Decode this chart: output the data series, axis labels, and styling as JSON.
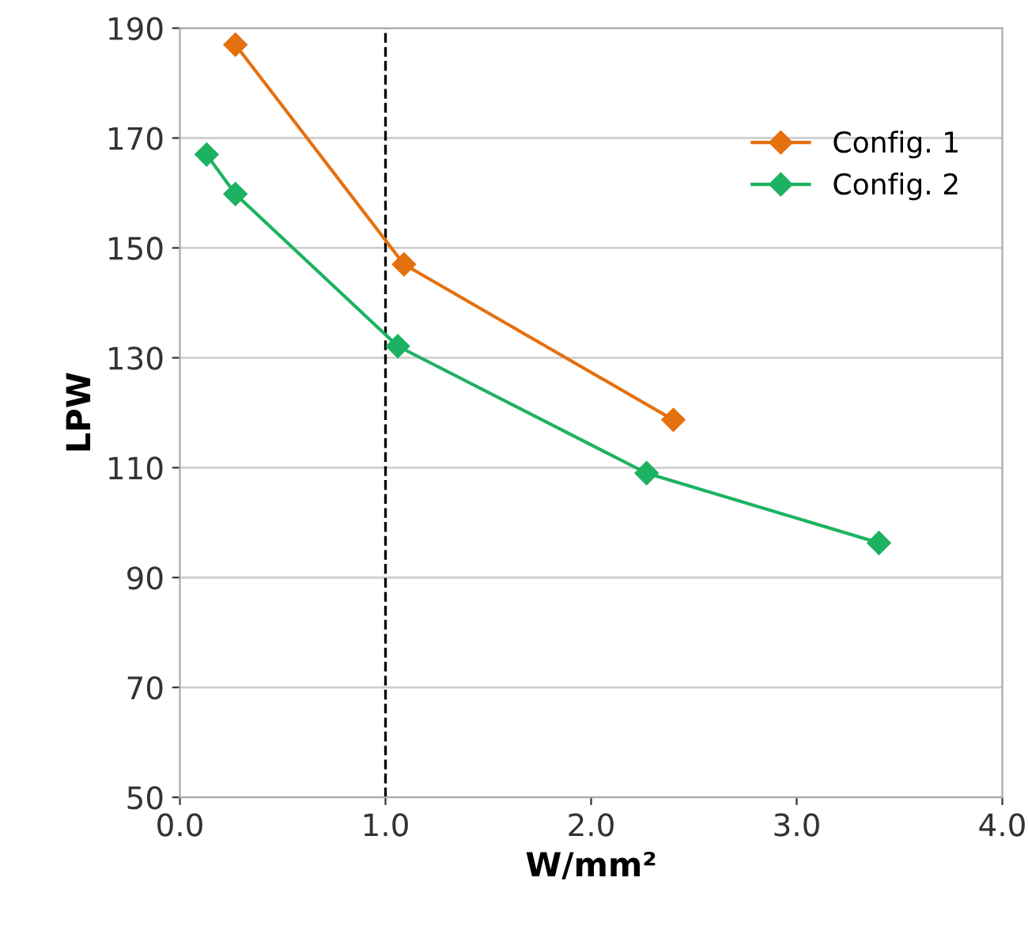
{
  "chart_data": {
    "type": "line",
    "xlabel": "W/mm²",
    "ylabel": "LPW",
    "series": [
      {
        "name": "Config. 1",
        "color": "#e5700f",
        "x": [
          0.27,
          1.09,
          2.4
        ],
        "values": [
          187,
          147,
          118.7
        ]
      },
      {
        "name": "Config. 2",
        "color": "#1db261",
        "x": [
          0.13,
          0.27,
          1.06,
          2.27,
          3.4
        ],
        "values": [
          167,
          159.8,
          132.1,
          109,
          96.3
        ]
      }
    ],
    "xlim": [
      0,
      4
    ],
    "xticks": [
      {
        "value": 0,
        "label": "0.0"
      },
      {
        "value": 1,
        "label": "1.0"
      },
      {
        "value": 2,
        "label": "2.0"
      },
      {
        "value": 3,
        "label": "3.0"
      },
      {
        "value": 4,
        "label": "4.0"
      }
    ],
    "ylim": [
      50,
      190
    ],
    "yticks": [
      50,
      70,
      90,
      110,
      130,
      150,
      170,
      190
    ],
    "ref_lines": [
      {
        "axis": "x",
        "value": 1,
        "label": null,
        "color": "#000000",
        "line_style": "dashed"
      }
    ],
    "grid": "y",
    "legend": "top right",
    "marker": "diamond",
    "line_style": "solid"
  }
}
